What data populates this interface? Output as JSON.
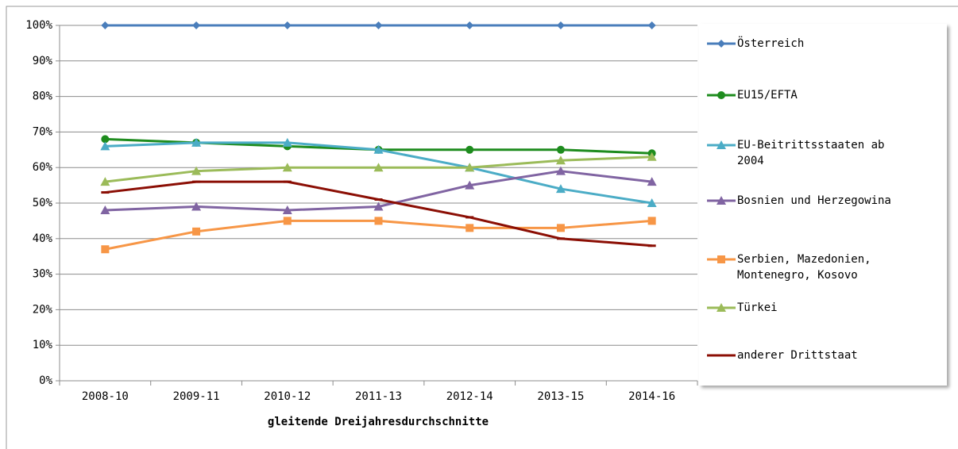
{
  "chart_data": {
    "type": "line",
    "x_label": "gleitende Dreijahresdurchschnitte",
    "categories": [
      "2008-10",
      "2009-11",
      "2010-12",
      "2011-13",
      "2012-14",
      "2013-15",
      "2014-16"
    ],
    "series": [
      {
        "name": "Österreich",
        "color": "#4a7ebb",
        "marker": "diamond",
        "values": [
          100,
          100,
          100,
          100,
          100,
          100,
          100
        ]
      },
      {
        "name": "EU15/EFTA",
        "color": "#1e8c1e",
        "marker": "circle",
        "values": [
          68,
          67,
          66,
          65,
          65,
          65,
          64
        ]
      },
      {
        "name": "EU-Beitrittsstaaten ab 2004",
        "color": "#4bacc6",
        "marker": "triangle",
        "values": [
          66,
          67,
          67,
          65,
          60,
          54,
          50
        ]
      },
      {
        "name": "Bosnien und Herzegowina",
        "color": "#8064a2",
        "marker": "triangle",
        "values": [
          48,
          49,
          48,
          49,
          55,
          59,
          56
        ]
      },
      {
        "name": "Serbien, Mazedonien, Montenegro, Kosovo",
        "color": "#f79646",
        "marker": "square",
        "values": [
          37,
          42,
          45,
          45,
          43,
          43,
          45
        ]
      },
      {
        "name": "Türkei",
        "color": "#9bbb59",
        "marker": "triangle",
        "values": [
          56,
          59,
          60,
          60,
          60,
          62,
          63
        ]
      },
      {
        "name": "anderer Drittstaat",
        "color": "#8b0e04",
        "marker": "dash",
        "values": [
          53,
          56,
          56,
          51,
          46,
          40,
          38
        ]
      }
    ],
    "ylim": [
      0,
      100
    ],
    "yticks": [
      {
        "value": 0,
        "label": "0%"
      },
      {
        "value": 10,
        "label": "10%"
      },
      {
        "value": 20,
        "label": "20%"
      },
      {
        "value": 30,
        "label": "30%"
      },
      {
        "value": 40,
        "label": "40%"
      },
      {
        "value": 50,
        "label": "50%"
      },
      {
        "value": 60,
        "label": "60%"
      },
      {
        "value": 70,
        "label": "70%"
      },
      {
        "value": 80,
        "label": "80%"
      },
      {
        "value": 90,
        "label": "90%"
      },
      {
        "value": 100,
        "label": "100%"
      }
    ],
    "grid": true,
    "legend": "right"
  }
}
